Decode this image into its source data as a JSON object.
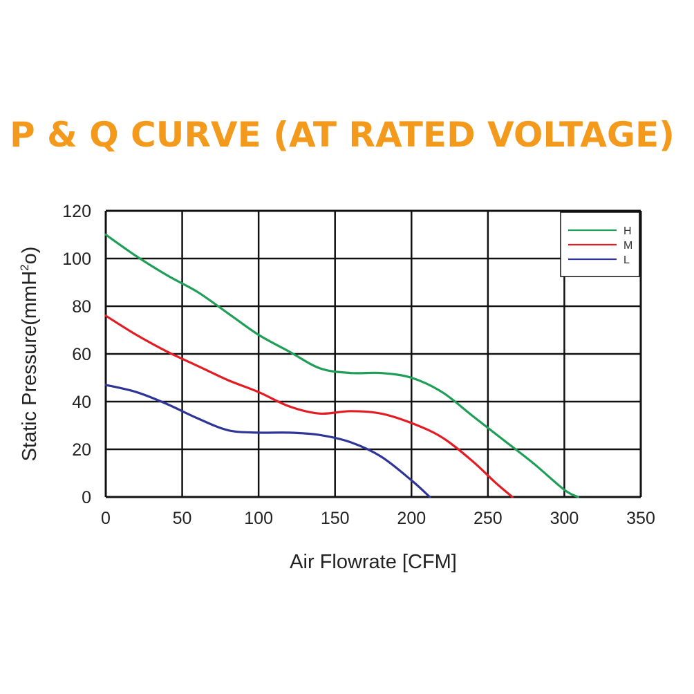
{
  "chart_data": {
    "type": "line",
    "title": "P & Q CURVE (AT RATED VOLTAGE)",
    "xlabel": "Air Flowrate [CFM]",
    "ylabel_main": "Static Pressure(mmH",
    "ylabel_sup": "2",
    "ylabel_tail": "o)",
    "xlim": [
      0,
      350
    ],
    "ylim": [
      0,
      120
    ],
    "x_ticks": [
      0,
      50,
      100,
      150,
      200,
      250,
      300,
      350
    ],
    "y_ticks": [
      0,
      20,
      40,
      60,
      80,
      100,
      120
    ],
    "x_tick_labels": [
      "0",
      "50",
      "100",
      "150",
      "200",
      "250",
      "300",
      "350"
    ],
    "y_tick_labels": [
      "0",
      "20",
      "40",
      "60",
      "80",
      "100",
      "120"
    ],
    "grid": true,
    "legend_position": "top-right",
    "series": [
      {
        "name": "H",
        "color": "#1f9e57",
        "points": [
          [
            0,
            110
          ],
          [
            20,
            101
          ],
          [
            40,
            93
          ],
          [
            60,
            86
          ],
          [
            80,
            77
          ],
          [
            100,
            68
          ],
          [
            120,
            61
          ],
          [
            140,
            54
          ],
          [
            160,
            52
          ],
          [
            180,
            52
          ],
          [
            200,
            50
          ],
          [
            220,
            44
          ],
          [
            240,
            34
          ],
          [
            260,
            24
          ],
          [
            280,
            14
          ],
          [
            300,
            3
          ],
          [
            309,
            0
          ]
        ]
      },
      {
        "name": "M",
        "color": "#e31b23",
        "points": [
          [
            0,
            76
          ],
          [
            20,
            68
          ],
          [
            40,
            61
          ],
          [
            60,
            55
          ],
          [
            80,
            49
          ],
          [
            100,
            44
          ],
          [
            120,
            38
          ],
          [
            140,
            35
          ],
          [
            160,
            36
          ],
          [
            180,
            35
          ],
          [
            200,
            31
          ],
          [
            220,
            25
          ],
          [
            240,
            15
          ],
          [
            255,
            6
          ],
          [
            266,
            0
          ]
        ]
      },
      {
        "name": "L",
        "color": "#2e3596",
        "points": [
          [
            0,
            47
          ],
          [
            20,
            44
          ],
          [
            40,
            39
          ],
          [
            60,
            33
          ],
          [
            80,
            28
          ],
          [
            100,
            27
          ],
          [
            120,
            27
          ],
          [
            140,
            26
          ],
          [
            160,
            23
          ],
          [
            180,
            17
          ],
          [
            200,
            7
          ],
          [
            212,
            0
          ]
        ]
      }
    ]
  }
}
